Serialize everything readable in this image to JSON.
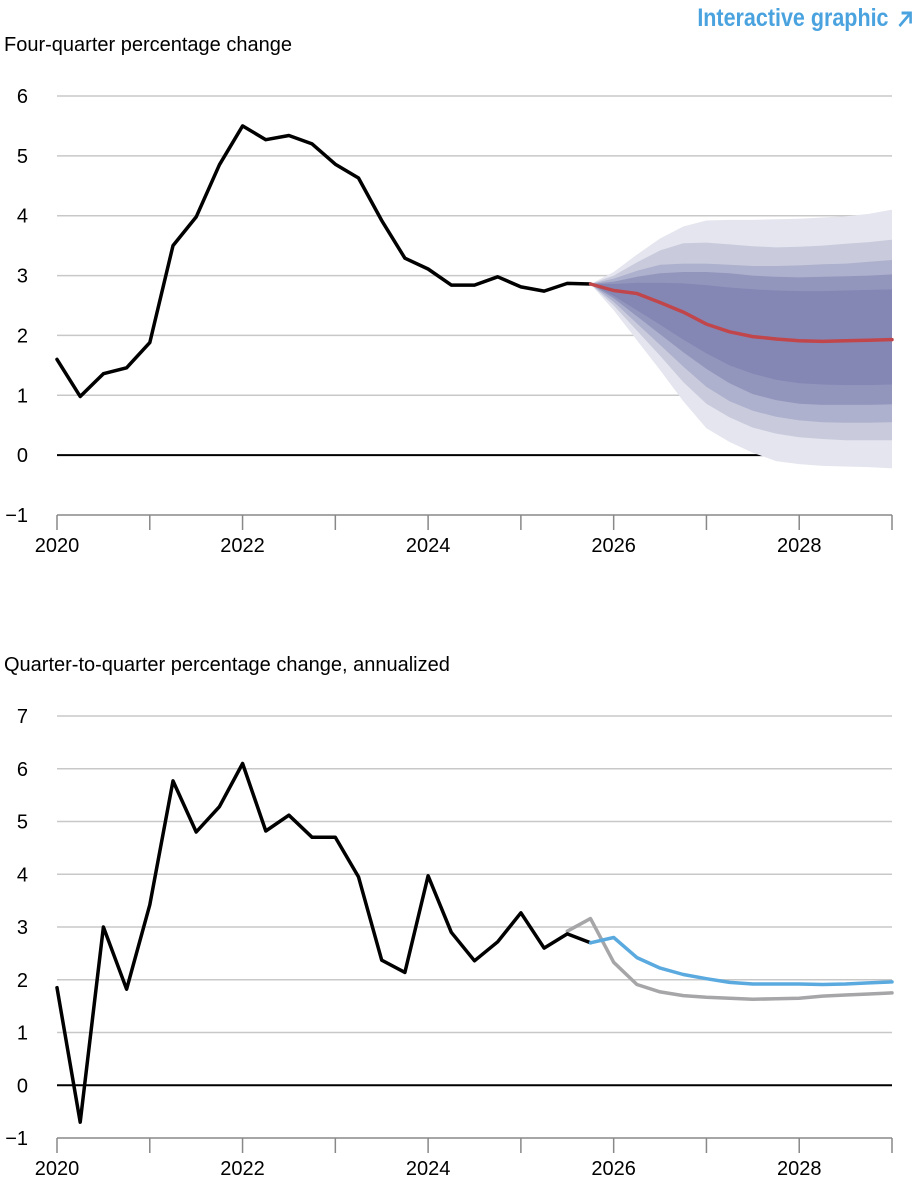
{
  "header": {
    "link_label": "Interactive graphic",
    "link_icon": "arrow-up-right-icon",
    "link_color": "#4aa3df"
  },
  "colors": {
    "history": "#000000",
    "median_forecast": "#c0464b",
    "forecast_qq": "#5aaadf",
    "previous_forecast": "#a6a6a8",
    "bands": [
      "#e4e5ee",
      "#c9cbdd",
      "#aeb1cd",
      "#9396bc",
      "#8487b4"
    ],
    "gridline": "#c8c8c8"
  },
  "chart_data": [
    {
      "type": "area",
      "title": "Four-quarter percentage change",
      "ylim": [
        -1,
        6
      ],
      "yticks": [
        -1,
        0,
        1,
        2,
        3,
        4,
        5,
        6
      ],
      "xlim": [
        2020,
        2029
      ],
      "xticks": [
        2020,
        2022,
        2024,
        2026,
        2028
      ],
      "grid": true,
      "series": [
        {
          "role": "history",
          "x": [
            2020.0,
            2020.25,
            2020.5,
            2020.75,
            2021.0,
            2021.25,
            2021.5,
            2021.75,
            2022.0,
            2022.25,
            2022.5,
            2022.75,
            2023.0,
            2023.25,
            2023.5,
            2023.75,
            2024.0,
            2024.25,
            2024.5,
            2024.75,
            2025.0,
            2025.25,
            2025.5,
            2025.75
          ],
          "y": [
            1.6,
            0.98,
            1.36,
            1.46,
            1.88,
            3.5,
            3.98,
            4.85,
            5.5,
            5.27,
            5.34,
            5.2,
            4.86,
            4.63,
            3.92,
            3.29,
            3.11,
            2.84,
            2.84,
            2.98,
            2.81,
            2.74,
            2.87,
            2.86
          ]
        },
        {
          "role": "median_forecast",
          "x": [
            2025.75,
            2026.0,
            2026.25,
            2026.5,
            2026.75,
            2027.0,
            2027.25,
            2027.5,
            2027.75,
            2028.0,
            2028.25,
            2028.5,
            2028.75,
            2029.0
          ],
          "y": [
            2.86,
            2.75,
            2.7,
            2.55,
            2.39,
            2.19,
            2.06,
            1.98,
            1.94,
            1.91,
            1.9,
            1.91,
            1.92,
            1.93
          ]
        }
      ],
      "bands": {
        "x": [
          2025.75,
          2026.0,
          2026.25,
          2026.5,
          2026.75,
          2027.0,
          2027.25,
          2027.5,
          2027.75,
          2028.0,
          2028.25,
          2028.5,
          2028.75,
          2029.0
        ],
        "ranges": [
          {
            "upper": [
              2.86,
              3.06,
              3.35,
              3.62,
              3.82,
              3.92,
              3.93,
              3.93,
              3.94,
              3.95,
              3.97,
              3.99,
              4.03,
              4.1
            ],
            "lower": [
              2.86,
              2.42,
              1.92,
              1.42,
              0.9,
              0.45,
              0.22,
              0.04,
              -0.1,
              -0.15,
              -0.18,
              -0.19,
              -0.2,
              -0.22
            ]
          },
          {
            "upper": [
              2.86,
              3.0,
              3.22,
              3.42,
              3.54,
              3.55,
              3.52,
              3.49,
              3.47,
              3.48,
              3.5,
              3.53,
              3.56,
              3.6
            ],
            "lower": [
              2.86,
              2.5,
              2.08,
              1.66,
              1.22,
              0.86,
              0.63,
              0.46,
              0.36,
              0.3,
              0.27,
              0.25,
              0.25,
              0.25
            ]
          },
          {
            "upper": [
              2.86,
              2.95,
              3.08,
              3.18,
              3.2,
              3.2,
              3.18,
              3.16,
              3.16,
              3.17,
              3.19,
              3.2,
              3.23,
              3.26
            ],
            "lower": [
              2.86,
              2.56,
              2.2,
              1.84,
              1.48,
              1.14,
              0.9,
              0.74,
              0.64,
              0.58,
              0.55,
              0.54,
              0.54,
              0.55
            ]
          },
          {
            "upper": [
              2.86,
              2.9,
              2.98,
              3.04,
              3.06,
              3.06,
              3.04,
              3.0,
              2.98,
              2.97,
              2.98,
              2.99,
              3.0,
              3.02
            ],
            "lower": [
              2.86,
              2.62,
              2.32,
              2.02,
              1.72,
              1.44,
              1.2,
              1.02,
              0.92,
              0.86,
              0.84,
              0.84,
              0.84,
              0.85
            ]
          },
          {
            "upper": [
              2.86,
              2.86,
              2.88,
              2.88,
              2.87,
              2.84,
              2.8,
              2.77,
              2.75,
              2.74,
              2.74,
              2.75,
              2.76,
              2.77
            ],
            "lower": [
              2.86,
              2.66,
              2.42,
              2.18,
              1.93,
              1.7,
              1.5,
              1.36,
              1.26,
              1.2,
              1.18,
              1.17,
              1.17,
              1.18
            ]
          }
        ]
      }
    },
    {
      "type": "line",
      "title": "Quarter-to-quarter percentage change, annualized",
      "ylim": [
        -1,
        7
      ],
      "yticks": [
        -1,
        0,
        1,
        2,
        3,
        4,
        5,
        6,
        7
      ],
      "xlim": [
        2020,
        2029
      ],
      "xticks": [
        2020,
        2022,
        2024,
        2026,
        2028
      ],
      "grid": true,
      "series": [
        {
          "role": "history",
          "x": [
            2020.0,
            2020.25,
            2020.5,
            2020.75,
            2021.0,
            2021.25,
            2021.5,
            2021.75,
            2022.0,
            2022.25,
            2022.5,
            2022.75,
            2023.0,
            2023.25,
            2023.5,
            2023.75,
            2024.0,
            2024.25,
            2024.5,
            2024.75,
            2025.0,
            2025.25,
            2025.5,
            2025.75
          ],
          "y": [
            1.85,
            -0.7,
            3.0,
            1.82,
            3.42,
            5.77,
            4.8,
            5.28,
            6.1,
            4.82,
            5.12,
            4.7,
            4.7,
            3.95,
            2.37,
            2.14,
            3.97,
            2.9,
            2.36,
            2.72,
            3.27,
            2.6,
            2.87,
            2.7
          ]
        },
        {
          "role": "previous_forecast",
          "x": [
            2025.5,
            2025.75,
            2026.0,
            2026.25,
            2026.5,
            2026.75,
            2027.0,
            2027.25,
            2027.5,
            2027.75,
            2028.0,
            2028.25,
            2028.5,
            2028.75,
            2029.0
          ],
          "y": [
            2.92,
            3.16,
            2.33,
            1.91,
            1.77,
            1.7,
            1.67,
            1.65,
            1.63,
            1.64,
            1.65,
            1.69,
            1.71,
            1.73,
            1.75
          ]
        },
        {
          "role": "forecast",
          "x": [
            2025.75,
            2026.0,
            2026.25,
            2026.5,
            2026.75,
            2027.0,
            2027.25,
            2027.5,
            2027.75,
            2028.0,
            2028.25,
            2028.5,
            2028.75,
            2029.0
          ],
          "y": [
            2.7,
            2.8,
            2.42,
            2.22,
            2.1,
            2.02,
            1.95,
            1.92,
            1.92,
            1.92,
            1.91,
            1.92,
            1.94,
            1.96
          ]
        }
      ]
    }
  ]
}
